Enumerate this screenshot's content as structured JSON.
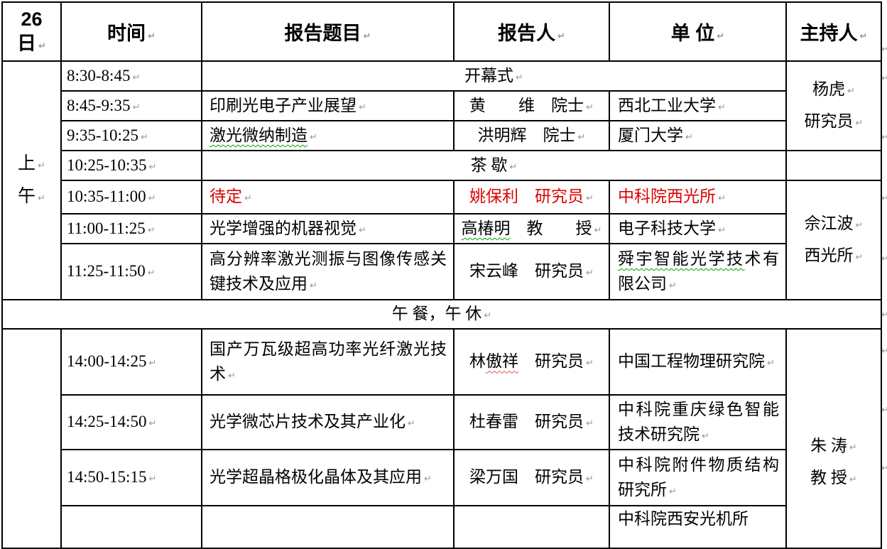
{
  "document_kind": "conference-agenda-table",
  "colors": {
    "text": "#000000",
    "highlight_red": "#dd0000",
    "spellcheck_green": "#00a000",
    "spellcheck_red": "#e05050",
    "grid": "#000000",
    "paragraph_mark": "#9a9a9a"
  },
  "editing_mark_glyph": "↵",
  "header": {
    "day_segments": [
      {
        "t": "26"
      },
      {
        "br": true
      },
      {
        "t": "日",
        "cls": "pm"
      }
    ],
    "time": "时间",
    "title": "报告题目",
    "speaker": "报告人",
    "org": "单  位",
    "host": "主持人"
  },
  "morning": {
    "label_segments": [
      {
        "t": "上",
        "cls": "pm"
      },
      {
        "br": true
      },
      {
        "t": "午",
        "cls": "pm"
      }
    ]
  },
  "hosts": {
    "morning1": {
      "line1": "杨虎",
      "line2": "研究员"
    },
    "morning2": {
      "line1": "佘江波",
      "line2": "西光所"
    },
    "afternoon": {
      "line1": "朱  涛",
      "line2": "教  授"
    }
  },
  "rows": [
    {
      "time": "8:30-8:45",
      "span": "开幕式"
    },
    {
      "time": "8:45-9:35",
      "title": [
        {
          "t": "印刷光电子产业展望"
        }
      ],
      "speaker": [
        {
          "t": "黄　　维　院士"
        }
      ],
      "org": [
        {
          "t": "西北工业大学"
        }
      ]
    },
    {
      "time": "9:35-10:25",
      "title": [
        {
          "t": "激光微纳制造",
          "cls": "sq-green"
        }
      ],
      "speaker": [
        {
          "t": "洪明辉　院士"
        }
      ],
      "org": [
        {
          "t": "厦门大学"
        }
      ]
    },
    {
      "time": "10:25-10:35",
      "span": "茶  歇"
    },
    {
      "time": "10:35-11:00",
      "title": [
        {
          "t": "待定",
          "cls": "red"
        }
      ],
      "speaker": [
        {
          "t": "姚保利　研究员",
          "cls": "red"
        }
      ],
      "org": [
        {
          "t": "中科院西光所",
          "cls": "red"
        }
      ]
    },
    {
      "time": "11:00-11:25",
      "title": [
        {
          "t": "光学增强的机器视觉"
        }
      ],
      "speaker": [
        {
          "t": "高椿明",
          "cls": "sq-green"
        },
        {
          "t": "　教　　授"
        }
      ],
      "org": [
        {
          "t": "电子科技大学"
        }
      ]
    },
    {
      "time": "11:25-11:50",
      "title": [
        {
          "t": "高分辨率激光测振与图像传感关键技术及应用"
        }
      ],
      "speaker": [
        {
          "t": "宋云峰　研究员"
        }
      ],
      "org": [
        {
          "t": "舜宇智能光学技",
          "cls": "sq-green"
        },
        {
          "t": "术有限公司"
        }
      ]
    },
    {
      "span": "午  餐，午  休"
    },
    {
      "time": "14:00-14:25",
      "title": [
        {
          "t": "国产万瓦级超高功率光纤激光技术"
        }
      ],
      "speaker": [
        {
          "t": "林"
        },
        {
          "t": "傲祥",
          "cls": "sq-red"
        },
        {
          "t": "　研究员"
        }
      ],
      "org": [
        {
          "t": "中国工程物理研究院"
        }
      ]
    },
    {
      "time": "14:25-14:50",
      "title": [
        {
          "t": "光学微芯片技术及其产业化"
        }
      ],
      "speaker": [
        {
          "t": "杜春雷　研究员"
        }
      ],
      "org": [
        {
          "t": "中科院重庆绿色智能技术研究院"
        }
      ]
    },
    {
      "time": "14:50-15:15",
      "title": [
        {
          "t": "光学超晶格极化晶体及其应用"
        }
      ],
      "speaker": [
        {
          "t": "梁万国　研究员"
        }
      ],
      "org": [
        {
          "t": "中科院附件物质结构研究所"
        }
      ]
    }
  ],
  "partial_bottom_row": {
    "org_segments": [
      {
        "t": "中科院西安光机所"
      }
    ]
  }
}
